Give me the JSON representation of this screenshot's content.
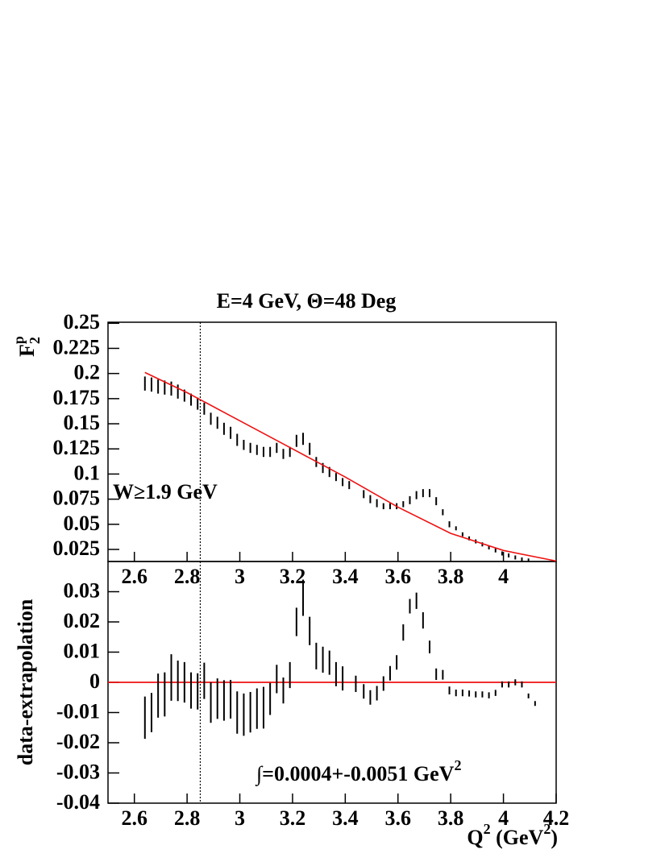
{
  "chart_data": [
    {
      "type": "errorbar",
      "title": "E=4 GeV, Θ=48 Deg",
      "ylabel": [
        {
          "text": "F"
        },
        {
          "text": "p",
          "script": "sup"
        },
        {
          "text": "2",
          "script": "sub"
        }
      ],
      "annotation": "W≥1.9 GeV",
      "xlim": [
        2.5,
        4.2
      ],
      "ylim": [
        0.013,
        0.251
      ],
      "xticks": [
        2.6,
        2.8,
        3,
        3.2,
        3.4,
        3.6,
        3.8,
        4
      ],
      "yticks": [
        0.025,
        0.05,
        0.075,
        0.1,
        0.125,
        0.15,
        0.175,
        0.2,
        0.225,
        0.25
      ],
      "marker_x": 2.85,
      "series": [
        {
          "type": "errorbar",
          "color": "#000000",
          "x": [
            2.64,
            2.665,
            2.69,
            2.715,
            2.74,
            2.765,
            2.79,
            2.815,
            2.84,
            2.865,
            2.89,
            2.915,
            2.94,
            2.965,
            2.99,
            3.015,
            3.04,
            3.065,
            3.09,
            3.115,
            3.14,
            3.165,
            3.19,
            3.215,
            3.24,
            3.265,
            3.29,
            3.315,
            3.34,
            3.365,
            3.39,
            3.415,
            3.47,
            3.495,
            3.52,
            3.545,
            3.57,
            3.595,
            3.62,
            3.645,
            3.67,
            3.695,
            3.72,
            3.745,
            3.77,
            3.795,
            3.82,
            3.845,
            3.87,
            3.895,
            3.92,
            3.945,
            3.97,
            3.995,
            4.02,
            4.045,
            4.07,
            4.095
          ],
          "values": [
            0.19,
            0.189,
            0.187,
            0.186,
            0.185,
            0.182,
            0.178,
            0.174,
            0.17,
            0.165,
            0.155,
            0.151,
            0.145,
            0.141,
            0.134,
            0.129,
            0.126,
            0.124,
            0.122,
            0.122,
            0.126,
            0.12,
            0.122,
            0.133,
            0.135,
            0.125,
            0.112,
            0.106,
            0.102,
            0.097,
            0.092,
            0.089,
            0.08,
            0.075,
            0.071,
            0.068,
            0.068,
            0.068,
            0.07,
            0.074,
            0.079,
            0.081,
            0.081,
            0.073,
            0.062,
            0.05,
            0.046,
            0.04,
            0.036,
            0.033,
            0.03,
            0.027,
            0.024,
            0.021,
            0.019,
            0.017,
            0.015,
            0.014
          ],
          "errors": [
            0.007,
            0.007,
            0.007,
            0.007,
            0.007,
            0.007,
            0.006,
            0.006,
            0.006,
            0.006,
            0.006,
            0.006,
            0.006,
            0.006,
            0.006,
            0.005,
            0.005,
            0.005,
            0.005,
            0.005,
            0.005,
            0.005,
            0.005,
            0.006,
            0.006,
            0.006,
            0.005,
            0.005,
            0.005,
            0.004,
            0.004,
            0.004,
            0.004,
            0.004,
            0.004,
            0.003,
            0.003,
            0.003,
            0.003,
            0.004,
            0.004,
            0.004,
            0.004,
            0.004,
            0.003,
            0.003,
            0.002,
            0.002,
            0.002,
            0.002,
            0.002,
            0.002,
            0.002,
            0.002,
            0.002,
            0.002,
            0.002,
            0.002
          ]
        },
        {
          "type": "line",
          "color": "#ee1111",
          "x": [
            2.64,
            2.8,
            3.0,
            3.2,
            3.4,
            3.6,
            3.8,
            4.0,
            4.2
          ],
          "values": [
            0.201,
            0.181,
            0.153,
            0.125,
            0.097,
            0.067,
            0.041,
            0.024,
            0.0135
          ]
        }
      ]
    },
    {
      "type": "errorbar",
      "ylabel": [
        {
          "text": "data-extrapolation"
        }
      ],
      "annotation": [
        {
          "text": "∫=0.0004+-0.0051 GeV"
        },
        {
          "text": "2",
          "script": "sup"
        }
      ],
      "xlabel": [
        {
          "text": "Q"
        },
        {
          "text": "2",
          "script": "sup"
        },
        {
          "text": " (GeV"
        },
        {
          "text": "2",
          "script": "sup"
        },
        {
          "text": ")"
        }
      ],
      "xlim": [
        2.5,
        4.2
      ],
      "ylim": [
        -0.04,
        0.04
      ],
      "xticks": [
        2.6,
        2.8,
        3,
        3.2,
        3.4,
        3.6,
        3.8,
        4,
        4.2
      ],
      "yticks": [
        -0.04,
        -0.03,
        -0.02,
        -0.01,
        0,
        0.01,
        0.02,
        0.03
      ],
      "marker_x": 2.85,
      "reference_line": {
        "value": 0,
        "color": "#ee1111"
      },
      "series": [
        {
          "type": "errorbar",
          "color": "#000000",
          "x": [
            2.64,
            2.665,
            2.69,
            2.715,
            2.74,
            2.765,
            2.79,
            2.815,
            2.84,
            2.865,
            2.89,
            2.915,
            2.94,
            2.965,
            2.99,
            3.015,
            3.04,
            3.065,
            3.09,
            3.115,
            3.14,
            3.165,
            3.19,
            3.215,
            3.24,
            3.265,
            3.29,
            3.315,
            3.34,
            3.365,
            3.39,
            3.44,
            3.47,
            3.495,
            3.52,
            3.545,
            3.57,
            3.595,
            3.62,
            3.645,
            3.67,
            3.695,
            3.72,
            3.745,
            3.77,
            3.795,
            3.82,
            3.845,
            3.87,
            3.895,
            3.92,
            3.945,
            3.97,
            3.995,
            4.02,
            4.045,
            4.07,
            4.095,
            4.12
          ],
          "values": [
            -0.0117,
            -0.01,
            -0.0044,
            -0.004,
            0.0016,
            0.0005,
            0,
            -0.0027,
            -0.003,
            0.0005,
            -0.0067,
            -0.0054,
            -0.006,
            -0.0056,
            -0.01,
            -0.0107,
            -0.0099,
            -0.0087,
            -0.0084,
            -0.0055,
            0.0011,
            -0.0027,
            0.0024,
            0.02,
            0.028,
            0.017,
            0.0087,
            0.0075,
            0.0065,
            0.0027,
            0.0013,
            -0.0005,
            -0.003,
            -0.005,
            -0.0036,
            -0.0004,
            0.003,
            0.0066,
            0.0165,
            0.0252,
            0.027,
            0.0205,
            0.0117,
            0.0027,
            0.0025,
            -0.0027,
            -0.0035,
            -0.0035,
            -0.0037,
            -0.004,
            -0.004,
            -0.0043,
            -0.0035,
            -0.0007,
            -0.0007,
            0,
            -0.0007,
            -0.0045,
            -0.007
          ],
          "errors": [
            0.007,
            0.0065,
            0.0073,
            0.0073,
            0.0077,
            0.0067,
            0.0067,
            0.006,
            0.006,
            0.006,
            0.0067,
            0.0067,
            0.0067,
            0.0064,
            0.007,
            0.007,
            0.0067,
            0.0067,
            0.0069,
            0.0053,
            0.0047,
            0.0043,
            0.0043,
            0.0047,
            0.006,
            0.0047,
            0.0044,
            0.0043,
            0.004,
            0.004,
            0.004,
            0.0027,
            0.0024,
            0.0024,
            0.0024,
            0.0024,
            0.0024,
            0.0024,
            0.0027,
            0.0024,
            0.0027,
            0.0027,
            0.0021,
            0.0019,
            0.0016,
            0.0013,
            0.0011,
            0.0011,
            0.001,
            0.001,
            0.001,
            0.001,
            0.001,
            0.001,
            0.001,
            0.001,
            0.001,
            0.0008,
            0.0008
          ]
        }
      ]
    }
  ]
}
